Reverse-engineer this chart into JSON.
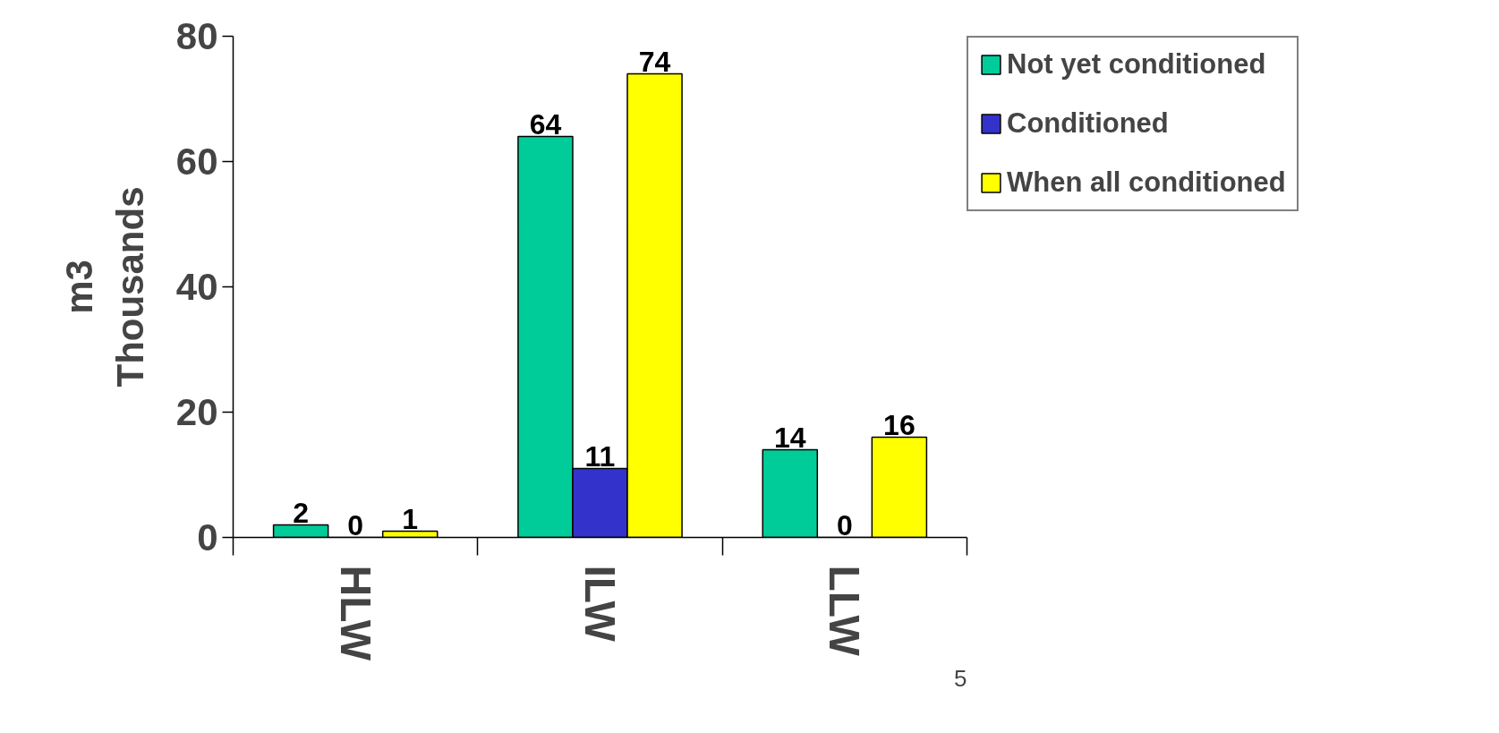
{
  "chart_data": {
    "type": "bar",
    "ylabel": "m3\nThousands",
    "categories": [
      "HLW",
      "ILW",
      "LLW"
    ],
    "series": [
      {
        "name": "Not yet conditioned",
        "color": "#00cc99",
        "values": [
          2,
          64,
          14
        ]
      },
      {
        "name": "Conditioned",
        "color": "#3333cc",
        "values": [
          0,
          11,
          0
        ]
      },
      {
        "name": "When all conditioned",
        "color": "#ffff00",
        "values": [
          1,
          74,
          16
        ]
      }
    ],
    "ylim": [
      0,
      80
    ],
    "yticks": [
      0,
      20,
      40,
      60,
      80
    ],
    "grid": false,
    "legend": "top right",
    "data_labels": true,
    "annotations": [
      "5"
    ]
  }
}
